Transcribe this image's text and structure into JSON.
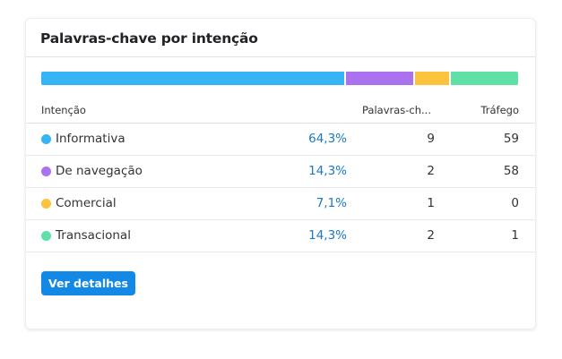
{
  "widget": {
    "title": "Palavras-chave por intenção",
    "button_label": "Ver detalhes"
  },
  "intent_bar": [
    {
      "name": "Informativa",
      "share_percent": 64.3,
      "color": "#36b4f4"
    },
    {
      "name": "De navegação",
      "share_percent": 14.3,
      "color": "#aa72ef"
    },
    {
      "name": "Comercial",
      "share_percent": 7.1,
      "color": "#fcc33d"
    },
    {
      "name": "Transacional",
      "share_percent": 14.3,
      "color": "#5ee0a7"
    }
  ],
  "table": {
    "headers": {
      "intent": "Intenção",
      "keywords": "Palavras-ch...",
      "traffic": "Tráfego"
    },
    "rows": [
      {
        "intent": "Informativa",
        "percent": "64,3%",
        "keywords": "9",
        "traffic": "59",
        "color": "#36b4f4"
      },
      {
        "intent": "De navegação",
        "percent": "14,3%",
        "keywords": "2",
        "traffic": "58",
        "color": "#aa72ef"
      },
      {
        "intent": "Comercial",
        "percent": "7,1%",
        "keywords": "1",
        "traffic": "0",
        "color": "#fcc33d"
      },
      {
        "intent": "Transacional",
        "percent": "14,3%",
        "keywords": "2",
        "traffic": "1",
        "color": "#5ee0a7"
      }
    ]
  }
}
